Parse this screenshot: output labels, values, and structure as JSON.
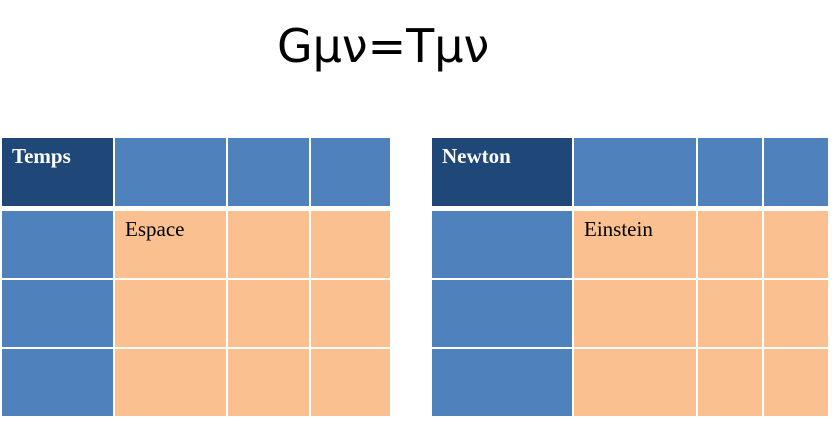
{
  "slide": {
    "title": "Gμν=Tμν"
  },
  "colors": {
    "slide_bg": "#FFFFFF",
    "header_cell": "#1F4878",
    "accent_blue": "#4F81BD",
    "accent_peach": "#FAC090",
    "grid_line": "#FFFFFF",
    "header_text": "#FFFFFF",
    "body_text": "#000000",
    "title_text": "#000000"
  },
  "tables": [
    {
      "id": "temps-espace",
      "rows": [
        [
          "Temps",
          "",
          "",
          ""
        ],
        [
          "",
          "Espace",
          "",
          ""
        ],
        [
          "",
          "",
          "",
          ""
        ],
        [
          "",
          "",
          "",
          ""
        ]
      ]
    },
    {
      "id": "newton-einstein",
      "rows": [
        [
          "Newton",
          "",
          "",
          ""
        ],
        [
          "",
          "Einstein",
          "",
          ""
        ],
        [
          "",
          "",
          "",
          ""
        ],
        [
          "",
          "",
          "",
          ""
        ]
      ]
    }
  ]
}
